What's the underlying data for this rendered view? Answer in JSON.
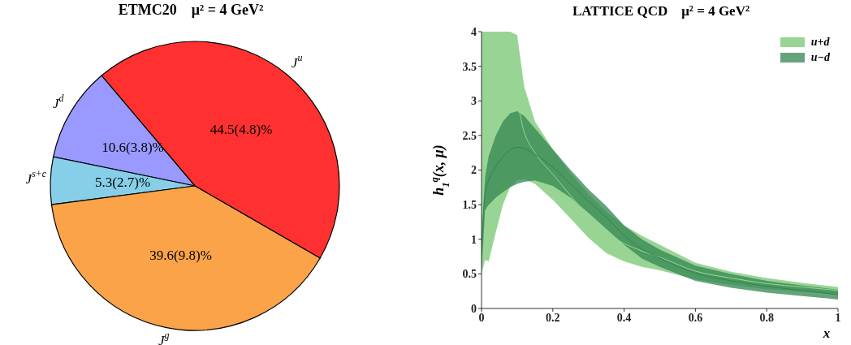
{
  "chart_data": [
    {
      "type": "pie",
      "title": "ETMC20    μ² = 4 GeV²",
      "categories": [
        "J$^{u}$",
        "J$^{d}$",
        "J$^{s+c}$",
        "J$^{g}$"
      ],
      "values": [
        44.5,
        10.6,
        5.3,
        39.6
      ],
      "colors": [
        "#ff3030",
        "#9999ff",
        "#87cfe8",
        "#fba349"
      ],
      "value_labels": [
        "44.5(4.8)%",
        "10.6(3.8)%",
        "5.3(2.7)%",
        "39.6(9.8)%"
      ]
    },
    {
      "type": "line",
      "title": "LATTICE QCD    μ² = 4 GeV²",
      "xlabel": "x",
      "ylabel": "h$_{1}$$^{q}$(x, μ)",
      "legend": "top right",
      "grid": false,
      "x": [
        0,
        0.01,
        0.02,
        0.04,
        0.06,
        0.08,
        0.1,
        0.12,
        0.15,
        0.2,
        0.25,
        0.3,
        0.35,
        0.4,
        0.45,
        0.5,
        0.6,
        0.7,
        0.8,
        0.9,
        1.0
      ],
      "series": [
        {
          "name": "u+d",
          "color": "#98d594",
          "values": [
            2.25,
            2.35,
            2.34,
            2.55,
            2.75,
            2.88,
            2.9,
            2.54,
            2.25,
            1.94,
            1.63,
            1.34,
            1.1,
            0.94,
            0.83,
            0.74,
            0.54,
            0.44,
            0.36,
            0.31,
            0.26
          ],
          "lower": [
            0.5,
            0.7,
            0.68,
            1.1,
            1.5,
            1.75,
            1.85,
            1.87,
            1.8,
            1.57,
            1.3,
            1.02,
            0.8,
            0.68,
            0.6,
            0.55,
            0.42,
            0.34,
            0.28,
            0.24,
            0.2
          ],
          "upper": [
            4,
            4,
            4,
            4,
            4,
            4,
            3.95,
            3.2,
            2.7,
            2.3,
            1.95,
            1.65,
            1.4,
            1.2,
            1.05,
            0.92,
            0.66,
            0.53,
            0.44,
            0.37,
            0.31
          ]
        },
        {
          "name": "u−d",
          "color": "#338452",
          "values": [
            0.78,
            1.66,
            1.85,
            2.05,
            2.19,
            2.29,
            2.33,
            2.31,
            2.23,
            2.04,
            1.8,
            1.55,
            1.32,
            1.06,
            0.86,
            0.73,
            0.51,
            0.4,
            0.32,
            0.26,
            0.2
          ],
          "lower": [
            0.55,
            1.42,
            1.5,
            1.6,
            1.68,
            1.75,
            1.8,
            1.83,
            1.85,
            1.77,
            1.6,
            1.38,
            1.15,
            0.92,
            0.72,
            0.6,
            0.4,
            0.3,
            0.23,
            0.18,
            0.13
          ],
          "upper": [
            1.0,
            1.9,
            2.2,
            2.5,
            2.7,
            2.82,
            2.85,
            2.78,
            2.6,
            2.3,
            2.0,
            1.72,
            1.48,
            1.2,
            1.0,
            0.85,
            0.62,
            0.5,
            0.4,
            0.33,
            0.27
          ]
        }
      ],
      "xlim": [
        0,
        1
      ],
      "ylim": [
        0,
        4
      ],
      "xticks": [
        0,
        0.2,
        0.4,
        0.6,
        0.8,
        1
      ],
      "yticks": [
        0,
        0.5,
        1,
        1.5,
        2,
        2.5,
        3,
        3.5,
        4
      ]
    }
  ]
}
